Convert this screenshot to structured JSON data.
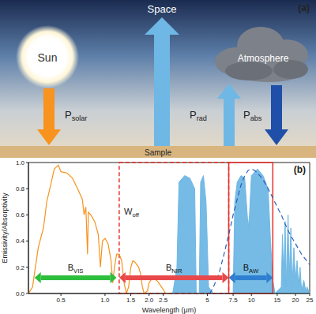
{
  "diagram": {
    "label": "(a)",
    "space": "Space",
    "sun": "Sun",
    "atmosphere": "Atmosphere",
    "sample": "Sample",
    "arrows": [
      {
        "text": "P",
        "sub": "solar",
        "color": "#F7931E"
      },
      {
        "text": "P",
        "sub": "rad",
        "color": "#6FB7E4"
      },
      {
        "text": "P",
        "sub": "abs",
        "color": "#1F4FA8"
      }
    ]
  },
  "chart_data": {
    "type": "line",
    "label": "(b)",
    "x_label": "Wavelength (μm)",
    "y_label": "Emissivity/Absorptivity",
    "log": "x",
    "grid": false,
    "xlim": [
      0.3,
      25
    ],
    "xticks": [
      0.5,
      {
        "value": 1,
        "label": "1.0"
      },
      1.5,
      {
        "value": 2,
        "label": "2.0"
      },
      2.5,
      5,
      7.5,
      10,
      15,
      20,
      25
    ],
    "ylim": [
      0,
      1
    ],
    "yticks": [
      {
        "value": 0,
        "label": "0.0"
      },
      0.2,
      0.4,
      0.6,
      0.8,
      {
        "value": 1,
        "label": "1.0"
      }
    ],
    "series": [
      {
        "type": "area",
        "color": "#6FB7E4",
        "line_style": "solid",
        "x": [
          2.9,
          3.1,
          3.2,
          3.5,
          3.8,
          4.1,
          4.2,
          4.4,
          4.5,
          4.7,
          4.9,
          5.1,
          5.5,
          7.5,
          7.7,
          8,
          8.5,
          9,
          9.5,
          9.7,
          10,
          11,
          12,
          13,
          13.5,
          14,
          14.5,
          16,
          16.3,
          16.6,
          17,
          17.3,
          17.8,
          18.1,
          18.6,
          19,
          19.5,
          20,
          20.5,
          21,
          21.5,
          22,
          22.8,
          23.5,
          24,
          25
        ],
        "values": [
          0,
          0.2,
          0.85,
          0.9,
          0.88,
          0.8,
          0,
          0,
          0.85,
          0.9,
          0.7,
          0.05,
          0,
          0,
          0.7,
          0.85,
          0.9,
          0.88,
          0.5,
          0.6,
          0.9,
          0.95,
          0.9,
          0.8,
          0.4,
          0.1,
          0,
          0.05,
          0.45,
          0.1,
          0.55,
          0.05,
          0.6,
          0.1,
          0.5,
          0.05,
          0.35,
          0.1,
          0.25,
          0.05,
          0.2,
          0.02,
          0.1,
          0.02,
          0.05,
          0
        ]
      },
      {
        "type": "line",
        "color": "#F7931E",
        "line_style": "solid",
        "x": [
          0.3,
          0.32,
          0.35,
          0.38,
          0.4,
          0.43,
          0.45,
          0.48,
          0.5,
          0.55,
          0.6,
          0.65,
          0.7,
          0.72,
          0.74,
          0.76,
          0.77,
          0.8,
          0.85,
          0.9,
          0.93,
          0.96,
          1.0,
          1.05,
          1.1,
          1.13,
          1.16,
          1.2,
          1.25,
          1.3,
          1.35,
          1.4,
          1.45,
          1.5,
          1.55,
          1.6,
          1.7,
          1.75,
          1.8,
          1.85,
          1.95,
          2.0,
          2.1,
          2.2,
          2.3,
          2.4,
          2.5,
          2.6,
          2.8
        ],
        "values": [
          0,
          0.05,
          0.35,
          0.5,
          0.7,
          0.85,
          0.95,
          0.98,
          0.93,
          0.92,
          0.88,
          0.8,
          0.72,
          0.6,
          0.66,
          0.3,
          0.62,
          0.6,
          0.55,
          0.45,
          0.2,
          0.4,
          0.42,
          0.38,
          0.25,
          0.08,
          0.2,
          0.3,
          0.3,
          0.25,
          0.08,
          0,
          0.05,
          0.2,
          0.25,
          0.24,
          0.2,
          0.15,
          0.05,
          0,
          0.02,
          0.08,
          0.12,
          0.11,
          0.09,
          0.06,
          0.03,
          0,
          0
        ]
      },
      {
        "type": "line",
        "color": "#2D5DB8",
        "line_style": "dashed",
        "x": [
          5.2,
          5.5,
          6,
          6.5,
          7,
          7.5,
          8,
          8.5,
          9,
          9.5,
          10,
          10.5,
          11,
          12,
          13,
          14,
          15,
          16,
          17,
          18,
          20,
          22,
          25
        ],
        "values": [
          0,
          0.05,
          0.15,
          0.3,
          0.45,
          0.6,
          0.72,
          0.83,
          0.9,
          0.94,
          0.95,
          0.94,
          0.92,
          0.87,
          0.8,
          0.73,
          0.66,
          0.6,
          0.53,
          0.47,
          0.38,
          0.3,
          0.22
        ]
      }
    ],
    "regions": [
      {
        "x": [
          1.25,
          7
        ],
        "line_style": "dashed",
        "color": "#E8302A"
      },
      {
        "x": [
          7,
          14
        ],
        "line_style": "solid",
        "color": "#E8302A"
      }
    ],
    "annotations": [
      {
        "text": "W",
        "sub": "off",
        "x": 1.35,
        "y": 0.6,
        "color": "#222222"
      }
    ],
    "bands": [
      {
        "text": "B",
        "sub": "VIS",
        "x": [
          0.33,
          1.2
        ],
        "y": 0.12,
        "color": "#2DBE3C"
      },
      {
        "text": "B",
        "sub": "NIR",
        "x": [
          1.25,
          7
        ],
        "y": 0.12,
        "color": "#E8484A"
      },
      {
        "text": "B",
        "sub": "AW",
        "x": [
          7,
          14
        ],
        "y": 0.12,
        "color": "#2F7FD1"
      }
    ]
  }
}
